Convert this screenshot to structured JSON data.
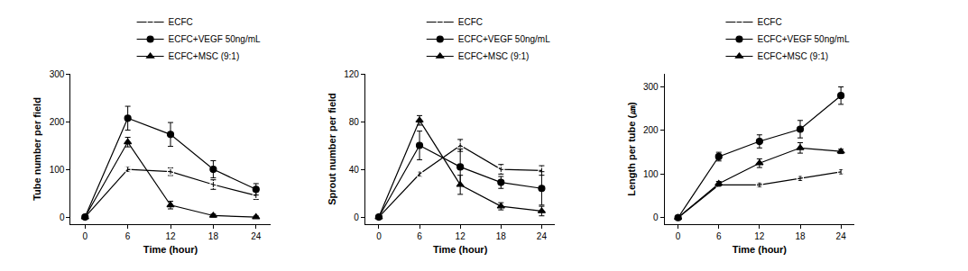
{
  "chart_data": [
    {
      "type": "line",
      "legend": "top",
      "xlabel": "Time (hour)",
      "ylabel": "Tube number per field",
      "x": [
        0,
        6,
        12,
        18,
        24
      ],
      "xlim": [
        -2,
        26
      ],
      "xticks": [
        0,
        6,
        12,
        18,
        24
      ],
      "ylim": [
        -15,
        300
      ],
      "yticks": [
        0,
        100,
        200,
        300
      ],
      "series": [
        {
          "name": "ECFC",
          "color": "#000000",
          "marker": "circle-open",
          "values": [
            0,
            100,
            95,
            68,
            45
          ],
          "error": [
            0,
            5,
            8,
            10,
            8
          ]
        },
        {
          "name": "ECFC+VEGF 50ng/mL",
          "color": "#000000",
          "marker": "circle",
          "values": [
            0,
            207,
            173,
            100,
            58
          ],
          "error": [
            0,
            25,
            25,
            18,
            12
          ]
        },
        {
          "name": "ECFC+MSC (9:1)",
          "color": "#000000",
          "marker": "triangle-up",
          "values": [
            0,
            157,
            25,
            3,
            0
          ],
          "error": [
            0,
            10,
            8,
            3,
            2
          ]
        }
      ]
    },
    {
      "type": "line",
      "legend": "top",
      "xlabel": "Time (hour)",
      "ylabel": "Sprout number per field",
      "x": [
        0,
        6,
        12,
        18,
        24
      ],
      "xlim": [
        -2,
        26
      ],
      "xticks": [
        0,
        6,
        12,
        18,
        24
      ],
      "ylim": [
        -6,
        120
      ],
      "yticks": [
        0,
        40,
        80,
        120
      ],
      "series": [
        {
          "name": "ECFC",
          "color": "#000000",
          "marker": "circle-open",
          "values": [
            0,
            36,
            60,
            40,
            39
          ],
          "error": [
            0,
            2,
            5,
            4,
            4
          ]
        },
        {
          "name": "ECFC+VEGF 50ng/mL",
          "color": "#000000",
          "marker": "circle",
          "values": [
            0,
            60,
            42,
            29,
            24
          ],
          "error": [
            0,
            12,
            15,
            5,
            14
          ]
        },
        {
          "name": "ECFC+MSC (9:1)",
          "color": "#000000",
          "marker": "triangle-up",
          "values": [
            0,
            81,
            27,
            9,
            5
          ],
          "error": [
            0,
            4,
            8,
            3,
            4
          ]
        }
      ]
    },
    {
      "type": "line",
      "legend": "top",
      "xlabel": "Time (hour)",
      "ylabel": "Length per tube (㎛)",
      "x": [
        0,
        6,
        12,
        18,
        24
      ],
      "xlim": [
        -2,
        26
      ],
      "xticks": [
        0,
        6,
        12,
        18,
        24
      ],
      "ylim": [
        -15,
        330
      ],
      "yticks": [
        0,
        100,
        200,
        300
      ],
      "series": [
        {
          "name": "ECFC",
          "color": "#000000",
          "marker": "circle-open",
          "values": [
            0,
            75,
            75,
            90,
            105
          ],
          "error": [
            0,
            3,
            5,
            5,
            5
          ]
        },
        {
          "name": "ECFC+VEGF 50ng/mL",
          "color": "#000000",
          "marker": "circle",
          "values": [
            0,
            140,
            175,
            203,
            280
          ],
          "error": [
            0,
            10,
            15,
            20,
            20
          ]
        },
        {
          "name": "ECFC+MSC (9:1)",
          "color": "#000000",
          "marker": "triangle-up",
          "values": [
            0,
            78,
            125,
            160,
            152
          ],
          "error": [
            0,
            5,
            10,
            12,
            5
          ]
        }
      ]
    }
  ]
}
